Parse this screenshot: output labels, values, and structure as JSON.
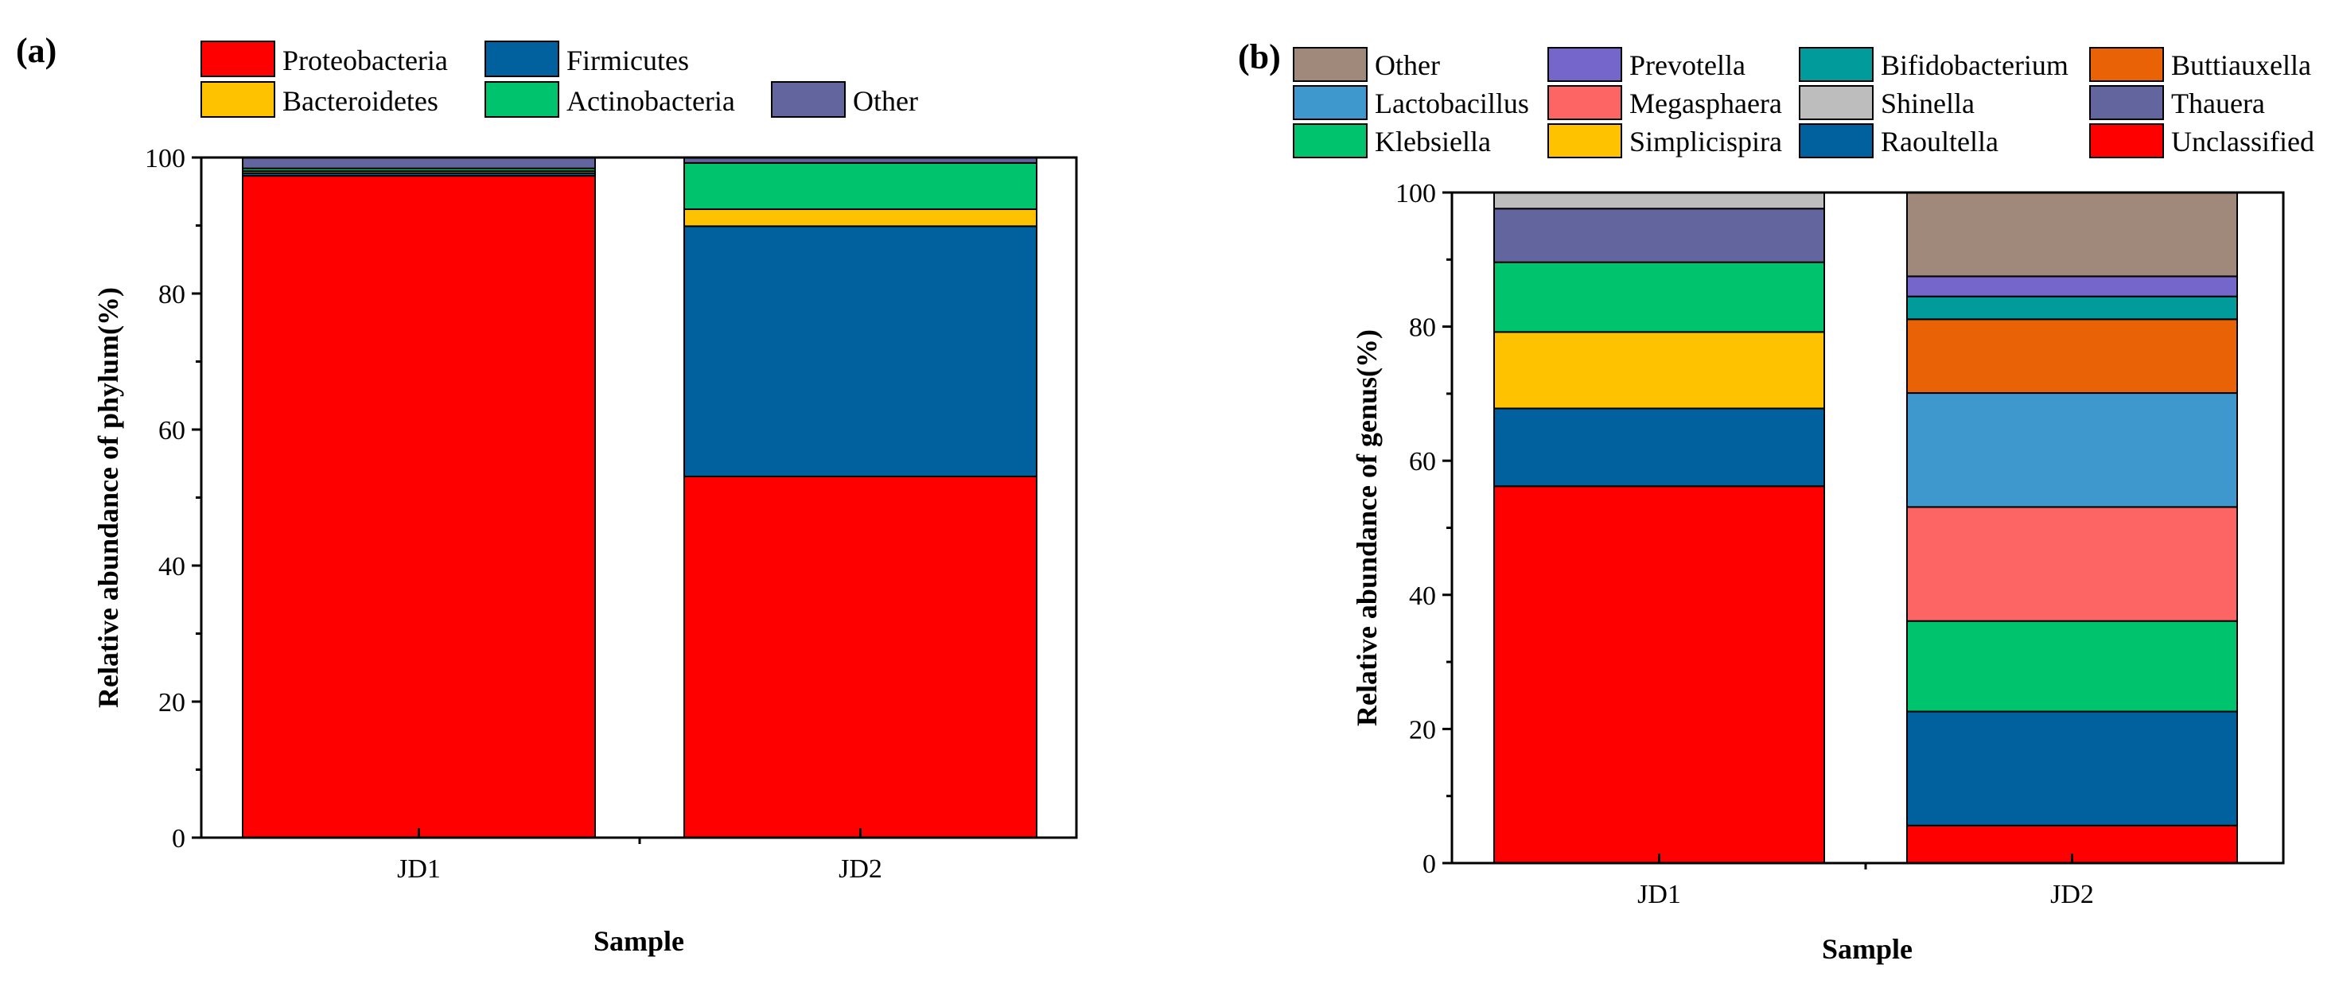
{
  "chart_data": [
    {
      "panel": "(a)",
      "type": "bar",
      "stacked": true,
      "categories": [
        "JD1",
        "JD2"
      ],
      "xlabel": "Sample",
      "ylabel": "Relative abundance of phylum(%)",
      "ylim": [
        0,
        100
      ],
      "yticks": [
        "0",
        "20",
        "40",
        "60",
        "80",
        "100"
      ],
      "legend_position": "top",
      "series": [
        {
          "name": "Proteobacteria",
          "color": "#fe0000",
          "values": [
            97.3,
            53.1
          ]
        },
        {
          "name": "Firmicutes",
          "color": "#00619e",
          "values": [
            0.4,
            36.8
          ]
        },
        {
          "name": "Bacteroidetes",
          "color": "#fec201",
          "values": [
            0.3,
            2.5
          ]
        },
        {
          "name": "Actinobacteria",
          "color": "#00c36d",
          "values": [
            0.4,
            6.8
          ]
        },
        {
          "name": "Other",
          "color": "#63659e",
          "values": [
            1.6,
            0.8
          ]
        }
      ]
    },
    {
      "panel": "(b)",
      "type": "bar",
      "stacked": true,
      "categories": [
        "JD1",
        "JD2"
      ],
      "xlabel": "Sample",
      "ylabel": "Relative abundance of genus(%)",
      "ylim": [
        0,
        100
      ],
      "yticks": [
        "0",
        "20",
        "40",
        "60",
        "80",
        "100"
      ],
      "legend_position": "top",
      "series": [
        {
          "name": "Unclassified",
          "color": "#fe0000",
          "values": [
            56.2,
            5.6
          ]
        },
        {
          "name": "Raoultella",
          "color": "#00619e",
          "values": [
            11.6,
            17.0
          ]
        },
        {
          "name": "Simplicispira",
          "color": "#fec201",
          "values": [
            11.4,
            0.0
          ]
        },
        {
          "name": "Klebsiella",
          "color": "#00c36d",
          "values": [
            10.4,
            13.5
          ]
        },
        {
          "name": "Thauera",
          "color": "#63659e",
          "values": [
            8.0,
            0.0
          ]
        },
        {
          "name": "Shinella",
          "color": "#bdbdbd",
          "values": [
            2.4,
            0.0
          ]
        },
        {
          "name": "Megasphaera",
          "color": "#fd6464",
          "values": [
            0.0,
            17.0
          ]
        },
        {
          "name": "Lactobacillus",
          "color": "#3f98cd",
          "values": [
            0.0,
            17.0
          ]
        },
        {
          "name": "Buttiauxella",
          "color": "#e96306",
          "values": [
            0.0,
            11.0
          ]
        },
        {
          "name": "Bifidobacterium",
          "color": "#019b9b",
          "values": [
            0.0,
            3.4
          ]
        },
        {
          "name": "Prevotella",
          "color": "#7466ca",
          "values": [
            0.0,
            3.0
          ]
        },
        {
          "name": "Other",
          "color": "#a0887a",
          "values": [
            0.0,
            12.5
          ]
        }
      ],
      "legend_grid": [
        [
          "Other",
          "Prevotella",
          "Bifidobacterium",
          "Buttiauxella"
        ],
        [
          "Lactobacillus",
          "Megasphaera",
          "Shinella",
          "Thauera"
        ],
        [
          "Klebsiella",
          "Simplicispira",
          "Raoultella",
          "Unclassified"
        ]
      ]
    }
  ]
}
